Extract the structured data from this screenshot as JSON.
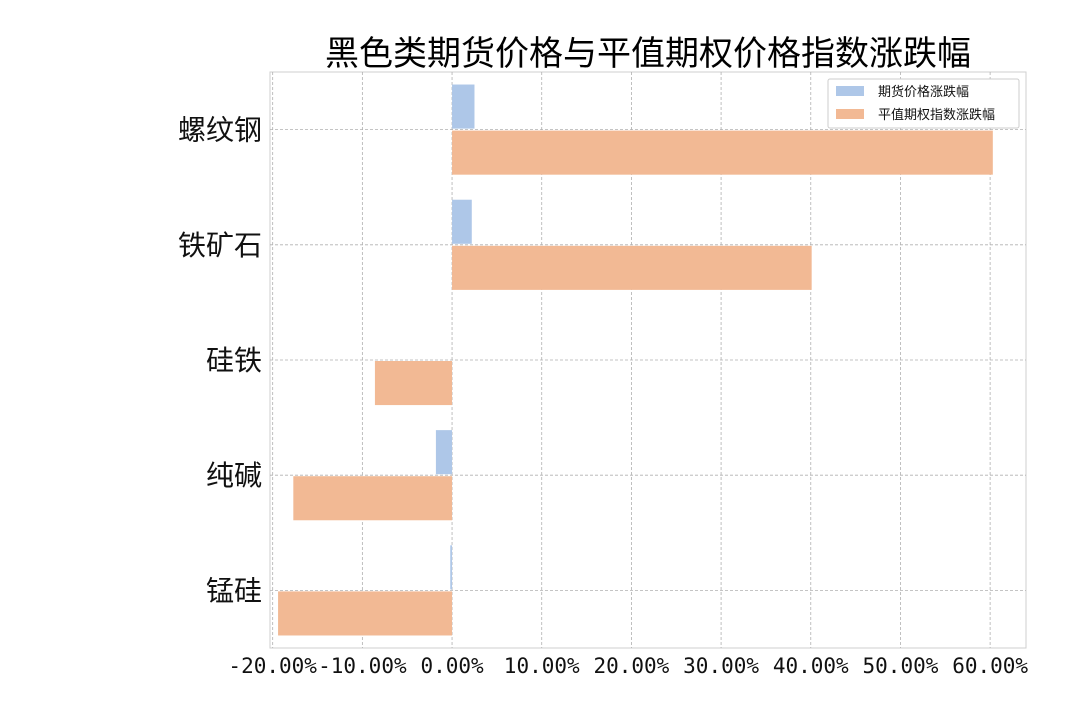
{
  "chart_data": {
    "type": "bar",
    "orientation": "horizontal",
    "title": "黑色类期货价格与平值期权价格指数涨跌幅",
    "xlabel": "",
    "ylabel": "",
    "categories": [
      "螺纹钢",
      "铁矿石",
      "硅铁",
      "纯碱",
      "锰硅"
    ],
    "series": [
      {
        "name": "期货价格涨跌幅",
        "color": "#aec7e8",
        "values": [
          2.5,
          2.2,
          0.0,
          -1.8,
          -0.2
        ]
      },
      {
        "name": "平值期权指数涨跌幅",
        "color": "#f2b994",
        "values": [
          60.3,
          40.1,
          -8.6,
          -17.7,
          -19.4
        ]
      }
    ],
    "xlim": [
      -20.3,
      64.0
    ],
    "xticks": [
      -20,
      -10,
      0,
      10,
      20,
      30,
      40,
      50,
      60
    ],
    "xtick_labels": [
      "-20.00%",
      "-10.00%",
      "0.00%",
      "10.00%",
      "20.00%",
      "30.00%",
      "40.00%",
      "50.00%",
      "60.00%"
    ],
    "grid": true,
    "legend_position": "top-right"
  }
}
